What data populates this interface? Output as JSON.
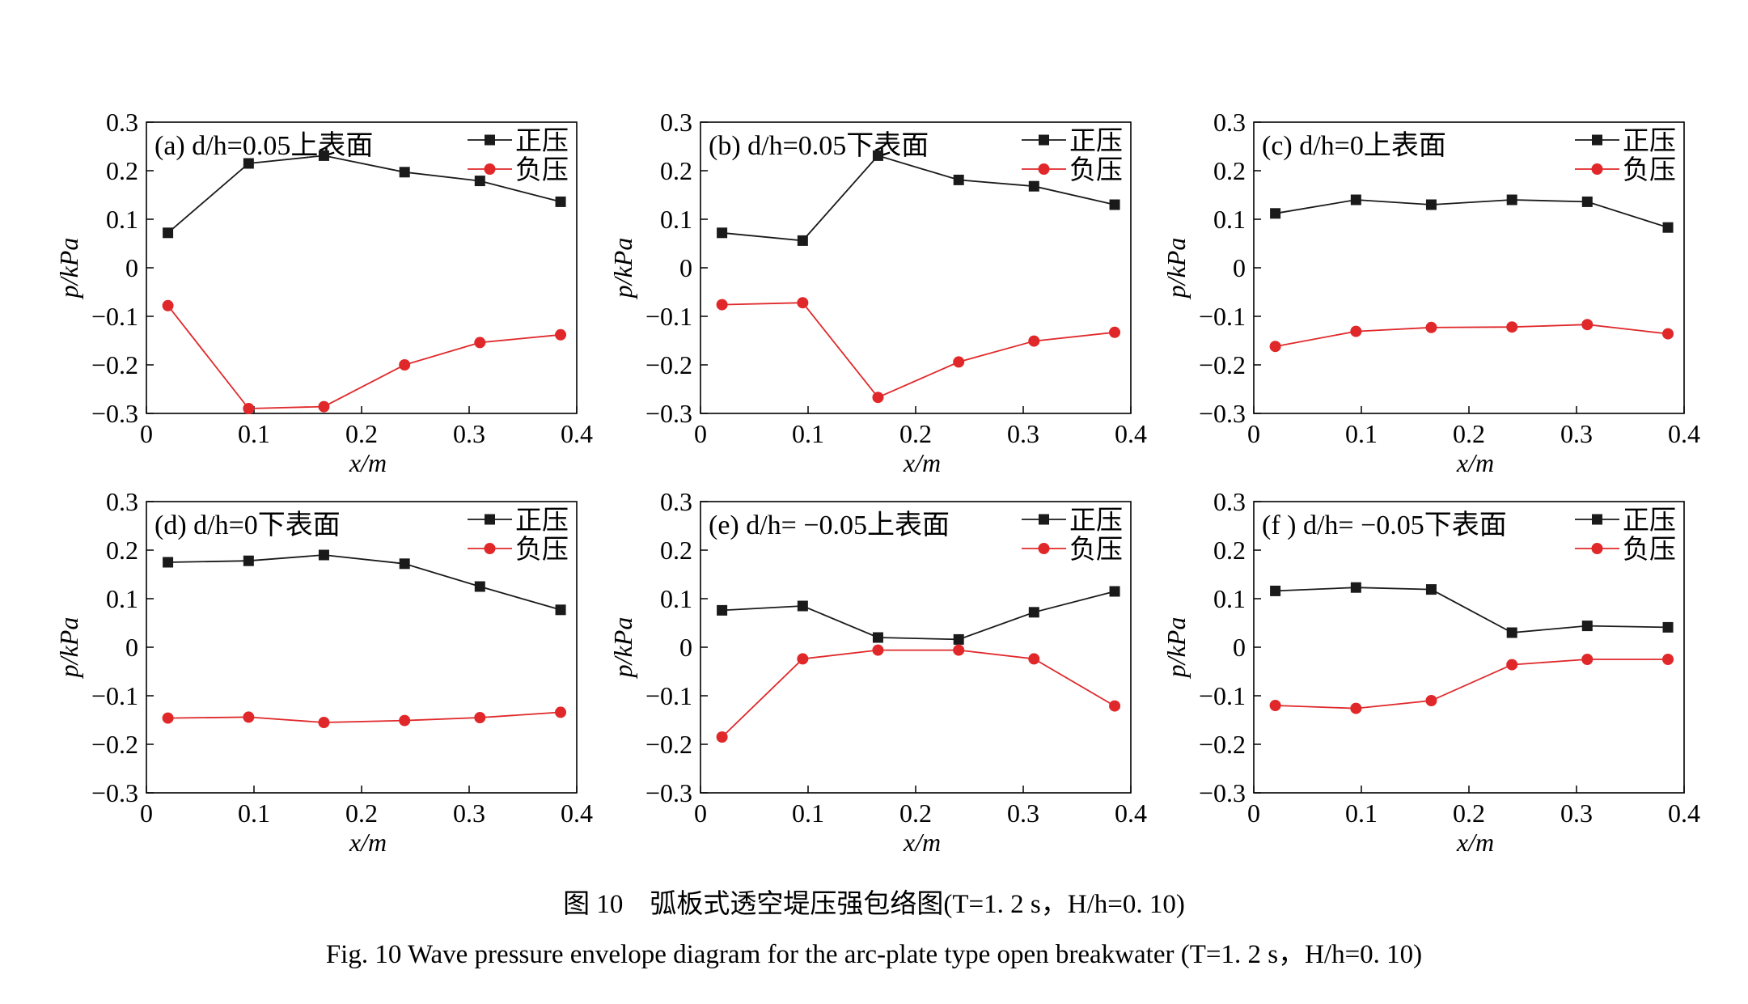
{
  "caption": {
    "cn": "图 10　弧板式透空堤压强包络图(T=1. 2 s，H/h=0. 10)",
    "en": "Fig. 10  Wave pressure envelope diagram for the arc-plate type open breakwater (T=1. 2 s，H/h=0. 10)"
  },
  "colors": {
    "positive": "#1a1a1a",
    "negative": "#e0282a"
  },
  "chart_data": [
    {
      "type": "line",
      "label": "(a) d/h=0.05上表面",
      "xlabel": "x/m",
      "ylabel": "p/kPa",
      "xlim": [
        0,
        0.4
      ],
      "ylim": [
        -0.3,
        0.3
      ],
      "xticks": [
        "0",
        "0.1",
        "0.2",
        "0.3",
        "0.4"
      ],
      "yticks": [
        "0.3",
        "0.2",
        "0.1",
        "0",
        "−0.1",
        "−0.2",
        "−0.3"
      ],
      "x": [
        0.02,
        0.095,
        0.165,
        0.24,
        0.31,
        0.385
      ],
      "series": [
        {
          "name": "正压",
          "values": [
            0.072,
            0.215,
            0.231,
            0.197,
            0.179,
            0.136
          ]
        },
        {
          "name": "负压",
          "values": [
            -0.078,
            -0.29,
            -0.286,
            -0.2,
            -0.154,
            -0.138
          ]
        }
      ],
      "legend": "top-right"
    },
    {
      "type": "line",
      "label": "(b) d/h=0.05下表面",
      "xlabel": "x/m",
      "ylabel": "p/kPa",
      "xlim": [
        0,
        0.4
      ],
      "ylim": [
        -0.3,
        0.3
      ],
      "xticks": [
        "0",
        "0.1",
        "0.2",
        "0.3",
        "0.4"
      ],
      "yticks": [
        "0.3",
        "0.2",
        "0.1",
        "0",
        "−0.1",
        "−0.2",
        "−0.3"
      ],
      "x": [
        0.02,
        0.095,
        0.165,
        0.24,
        0.31,
        0.385
      ],
      "series": [
        {
          "name": "正压",
          "values": [
            0.072,
            0.056,
            0.231,
            0.181,
            0.168,
            0.13
          ]
        },
        {
          "name": "负压",
          "values": [
            -0.076,
            -0.072,
            -0.267,
            -0.194,
            -0.151,
            -0.133
          ]
        }
      ],
      "legend": "top-right"
    },
    {
      "type": "line",
      "label": "(c) d/h=0上表面",
      "xlabel": "x/m",
      "ylabel": "p/kPa",
      "xlim": [
        0,
        0.4
      ],
      "ylim": [
        -0.3,
        0.3
      ],
      "xticks": [
        "0",
        "0.1",
        "0.2",
        "0.3",
        "0.4"
      ],
      "yticks": [
        "0.3",
        "0.2",
        "0.1",
        "0",
        "−0.1",
        "−0.2",
        "−0.3"
      ],
      "x": [
        0.02,
        0.095,
        0.165,
        0.24,
        0.31,
        0.385
      ],
      "series": [
        {
          "name": "正压",
          "values": [
            0.112,
            0.14,
            0.13,
            0.14,
            0.136,
            0.083
          ]
        },
        {
          "name": "负压",
          "values": [
            -0.162,
            -0.131,
            -0.123,
            -0.122,
            -0.117,
            -0.136
          ]
        }
      ],
      "legend": "top-right"
    },
    {
      "type": "line",
      "label": "(d) d/h=0下表面",
      "xlabel": "x/m",
      "ylabel": "p/kPa",
      "xlim": [
        0,
        0.4
      ],
      "ylim": [
        -0.3,
        0.3
      ],
      "xticks": [
        "0",
        "0.1",
        "0.2",
        "0.3",
        "0.4"
      ],
      "yticks": [
        "0.3",
        "0.2",
        "0.1",
        "0",
        "−0.1",
        "−0.2",
        "−0.3"
      ],
      "x": [
        0.02,
        0.095,
        0.165,
        0.24,
        0.31,
        0.385
      ],
      "series": [
        {
          "name": "正压",
          "values": [
            0.175,
            0.178,
            0.19,
            0.172,
            0.125,
            0.077
          ]
        },
        {
          "name": "负压",
          "values": [
            -0.146,
            -0.144,
            -0.155,
            -0.151,
            -0.145,
            -0.134
          ]
        }
      ],
      "legend": "top-right"
    },
    {
      "type": "line",
      "label": "(e) d/h= −0.05上表面",
      "xlabel": "x/m",
      "ylabel": "p/kPa",
      "xlim": [
        0,
        0.4
      ],
      "ylim": [
        -0.3,
        0.3
      ],
      "xticks": [
        "0",
        "0.1",
        "0.2",
        "0.3",
        "0.4"
      ],
      "yticks": [
        "0.3",
        "0.2",
        "0.1",
        "0",
        "−0.1",
        "−0.2",
        "−0.3"
      ],
      "x": [
        0.02,
        0.095,
        0.165,
        0.24,
        0.31,
        0.385
      ],
      "series": [
        {
          "name": "正压",
          "values": [
            0.076,
            0.085,
            0.02,
            0.016,
            0.072,
            0.115
          ]
        },
        {
          "name": "负压",
          "values": [
            -0.185,
            -0.024,
            -0.006,
            -0.006,
            -0.024,
            -0.121
          ]
        }
      ],
      "legend": "top-right"
    },
    {
      "type": "line",
      "label": "(f ) d/h= −0.05下表面",
      "xlabel": "x/m",
      "ylabel": "p/kPa",
      "xlim": [
        0,
        0.4
      ],
      "ylim": [
        -0.3,
        0.3
      ],
      "xticks": [
        "0",
        "0.1",
        "0.2",
        "0.3",
        "0.4"
      ],
      "yticks": [
        "0.3",
        "0.2",
        "0.1",
        "0",
        "−0.1",
        "−0.2",
        "−0.3"
      ],
      "x": [
        0.02,
        0.095,
        0.165,
        0.24,
        0.31,
        0.385
      ],
      "series": [
        {
          "name": "正压",
          "values": [
            0.116,
            0.123,
            0.119,
            0.03,
            0.044,
            0.041
          ]
        },
        {
          "name": "负压",
          "values": [
            -0.12,
            -0.126,
            -0.11,
            -0.036,
            -0.025,
            -0.025
          ]
        }
      ],
      "legend": "top-right"
    }
  ]
}
